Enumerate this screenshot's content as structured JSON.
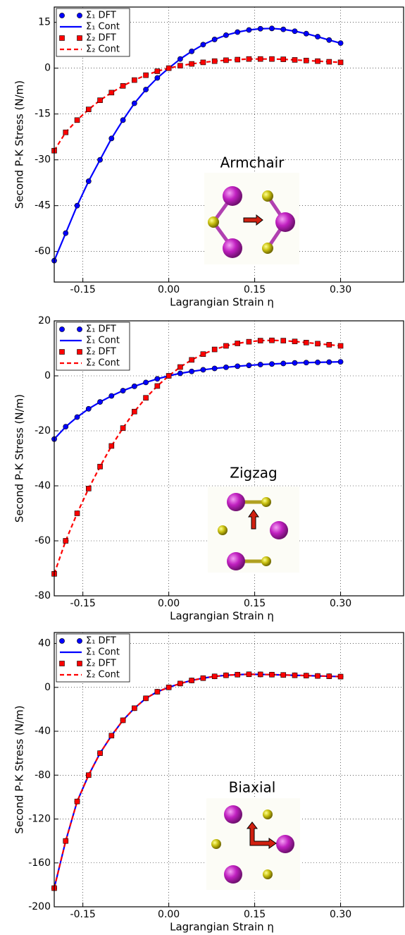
{
  "chart_data": [
    {
      "type": "line",
      "annotation": "Armchair",
      "x_label": "Lagrangian Strain η",
      "y_label": "Second P-K Stress (N/m)",
      "x": [
        -0.2,
        -0.18,
        -0.16,
        -0.14,
        -0.12,
        -0.1,
        -0.08,
        -0.06,
        -0.04,
        -0.02,
        0,
        0.02,
        0.04,
        0.06,
        0.08,
        0.1,
        0.12,
        0.14,
        0.16,
        0.18,
        0.2,
        0.22,
        0.24,
        0.26,
        0.28,
        0.3
      ],
      "series": [
        {
          "name": "Σ₁ DFT",
          "color": "#0000ff",
          "marker": "circle",
          "linestyle": "none",
          "values": [
            -63,
            -54,
            -45,
            -37,
            -30,
            -23,
            -17,
            -11.5,
            -7,
            -3.2,
            0,
            3,
            5.5,
            7.7,
            9.4,
            10.8,
            11.8,
            12.5,
            12.9,
            13,
            12.7,
            12.1,
            11.3,
            10.3,
            9.2,
            8.2
          ]
        },
        {
          "name": "Σ₁ Cont",
          "color": "#0000ff",
          "marker": "none",
          "linestyle": "solid",
          "values": [
            -63,
            -54,
            -45,
            -37,
            -30,
            -23,
            -17,
            -11.5,
            -7,
            -3.2,
            0,
            3,
            5.5,
            7.7,
            9.4,
            10.8,
            11.8,
            12.5,
            12.9,
            13,
            12.7,
            12.1,
            11.3,
            10.3,
            9.2,
            8.2
          ]
        },
        {
          "name": "Σ₂ DFT",
          "color": "#ff0000",
          "marker": "square",
          "linestyle": "none",
          "values": [
            -27,
            -21,
            -17,
            -13.5,
            -10.5,
            -8,
            -5.8,
            -3.9,
            -2.3,
            -1,
            0,
            0.8,
            1.4,
            1.9,
            2.3,
            2.6,
            2.8,
            3,
            3,
            3,
            2.9,
            2.7,
            2.5,
            2.3,
            2.1,
            1.9
          ]
        },
        {
          "name": "Σ₂ Cont",
          "color": "#ff0000",
          "marker": "none",
          "linestyle": "dashed",
          "values": [
            -27,
            -21,
            -17,
            -13.5,
            -10.5,
            -8,
            -5.8,
            -3.9,
            -2.3,
            -1,
            0,
            0.8,
            1.4,
            1.9,
            2.3,
            2.6,
            2.8,
            3,
            3,
            3,
            2.9,
            2.7,
            2.5,
            2.3,
            2.1,
            1.9
          ]
        }
      ],
      "xlim": [
        -0.2,
        0.41
      ],
      "ylim": [
        -70,
        20
      ],
      "xticks": [
        -0.15,
        {
          "value": 0,
          "label": "0.00"
        },
        0.15,
        {
          "value": 0.3,
          "label": "0.30"
        }
      ],
      "yticks": [
        15,
        0,
        -15,
        -30,
        -45,
        -60
      ],
      "grid": true,
      "legend": "upper left"
    },
    {
      "type": "line",
      "annotation": "Zigzag",
      "x_label": "Lagrangian Strain η",
      "y_label": "Second P-K Stress (N/m)",
      "x": [
        -0.2,
        -0.18,
        -0.16,
        -0.14,
        -0.12,
        -0.1,
        -0.08,
        -0.06,
        -0.04,
        -0.02,
        0,
        0.02,
        0.04,
        0.06,
        0.08,
        0.1,
        0.12,
        0.14,
        0.16,
        0.18,
        0.2,
        0.22,
        0.24,
        0.26,
        0.28,
        0.3
      ],
      "series": [
        {
          "name": "Σ₁ DFT",
          "color": "#0000ff",
          "marker": "circle",
          "linestyle": "none",
          "values": [
            -23,
            -18.5,
            -15,
            -12,
            -9.5,
            -7.3,
            -5.4,
            -3.8,
            -2.4,
            -1.1,
            0,
            0.9,
            1.6,
            2.2,
            2.7,
            3.1,
            3.5,
            3.8,
            4.1,
            4.3,
            4.5,
            4.7,
            4.8,
            4.9,
            5,
            5.1
          ]
        },
        {
          "name": "Σ₁ Cont",
          "color": "#0000ff",
          "marker": "none",
          "linestyle": "solid",
          "values": [
            -23,
            -18.5,
            -15,
            -12,
            -9.5,
            -7.3,
            -5.4,
            -3.8,
            -2.4,
            -1.1,
            0,
            0.9,
            1.6,
            2.2,
            2.7,
            3.1,
            3.5,
            3.8,
            4.1,
            4.3,
            4.5,
            4.7,
            4.8,
            4.9,
            5,
            5.1
          ]
        },
        {
          "name": "Σ₂ DFT",
          "color": "#ff0000",
          "marker": "square",
          "linestyle": "none",
          "values": [
            -72,
            -60,
            -50,
            -41,
            -33,
            -25.5,
            -19,
            -13,
            -8,
            -3.7,
            0,
            3.2,
            5.8,
            7.9,
            9.6,
            10.9,
            11.8,
            12.4,
            12.8,
            12.9,
            12.8,
            12.5,
            12.1,
            11.7,
            11.3,
            10.9
          ]
        },
        {
          "name": "Σ₂ Cont",
          "color": "#ff0000",
          "marker": "none",
          "linestyle": "dashed",
          "values": [
            -72,
            -60,
            -50,
            -41,
            -33,
            -25.5,
            -19,
            -13,
            -8,
            -3.7,
            0,
            3.2,
            5.8,
            7.9,
            9.6,
            10.9,
            11.8,
            12.4,
            12.8,
            12.9,
            12.8,
            12.5,
            12.1,
            11.7,
            11.3,
            10.9
          ]
        }
      ],
      "xlim": [
        -0.2,
        0.41
      ],
      "ylim": [
        -80,
        20
      ],
      "xticks": [
        -0.15,
        {
          "value": 0,
          "label": "0.00"
        },
        0.15,
        {
          "value": 0.3,
          "label": "0.30"
        }
      ],
      "yticks": [
        20,
        0,
        -20,
        -40,
        -60,
        -80
      ],
      "grid": true,
      "legend": "upper left"
    },
    {
      "type": "line",
      "annotation": "Biaxial",
      "x_label": "Lagrangian Strain η",
      "y_label": "Second P-K Stress (N/m)",
      "x": [
        -0.2,
        -0.18,
        -0.16,
        -0.14,
        -0.12,
        -0.1,
        -0.08,
        -0.06,
        -0.04,
        -0.02,
        0,
        0.02,
        0.04,
        0.06,
        0.08,
        0.1,
        0.12,
        0.14,
        0.16,
        0.18,
        0.2,
        0.22,
        0.24,
        0.26,
        0.28,
        0.3
      ],
      "series": [
        {
          "name": "Σ₁ DFT",
          "color": "#0000ff",
          "marker": "circle",
          "linestyle": "none",
          "values": [
            -183,
            -140,
            -104,
            -80,
            -60,
            -44,
            -30,
            -19,
            -10,
            -4,
            0,
            3.5,
            6.3,
            8.4,
            10,
            11,
            11.6,
            11.9,
            11.8,
            11.6,
            11.3,
            11,
            10.7,
            10.4,
            10.1,
            9.8
          ]
        },
        {
          "name": "Σ₁ Cont",
          "color": "#0000ff",
          "marker": "none",
          "linestyle": "solid",
          "values": [
            -183,
            -140,
            -104,
            -80,
            -60,
            -44,
            -30,
            -19,
            -10,
            -4,
            0,
            3.5,
            6.3,
            8.4,
            10,
            11,
            11.6,
            11.9,
            11.8,
            11.6,
            11.3,
            11,
            10.7,
            10.4,
            10.1,
            9.8
          ]
        },
        {
          "name": "Σ₂ DFT",
          "color": "#ff0000",
          "marker": "square",
          "linestyle": "none",
          "values": [
            -183,
            -140,
            -104,
            -80,
            -60,
            -44,
            -30,
            -19,
            -10,
            -4,
            0,
            3.5,
            6.3,
            8.4,
            10,
            11,
            11.6,
            11.9,
            11.8,
            11.6,
            11.3,
            11,
            10.7,
            10.4,
            10.1,
            9.8
          ]
        },
        {
          "name": "Σ₂ Cont",
          "color": "#ff0000",
          "marker": "none",
          "linestyle": "dashed",
          "values": [
            -183,
            -140,
            -104,
            -80,
            -60,
            -44,
            -30,
            -19,
            -10,
            -4,
            0,
            3.5,
            6.3,
            8.4,
            10,
            11,
            11.6,
            11.9,
            11.8,
            11.6,
            11.3,
            11,
            10.7,
            10.4,
            10.1,
            9.8
          ]
        }
      ],
      "xlim": [
        -0.2,
        0.41
      ],
      "ylim": [
        -200,
        50
      ],
      "xticks": [
        -0.15,
        {
          "value": 0,
          "label": "0.00"
        },
        0.15,
        {
          "value": 0.3,
          "label": "0.30"
        }
      ],
      "yticks": [
        40,
        0,
        -40,
        -80,
        -120,
        -160,
        -200
      ],
      "grid": true,
      "legend": "upper left"
    }
  ]
}
